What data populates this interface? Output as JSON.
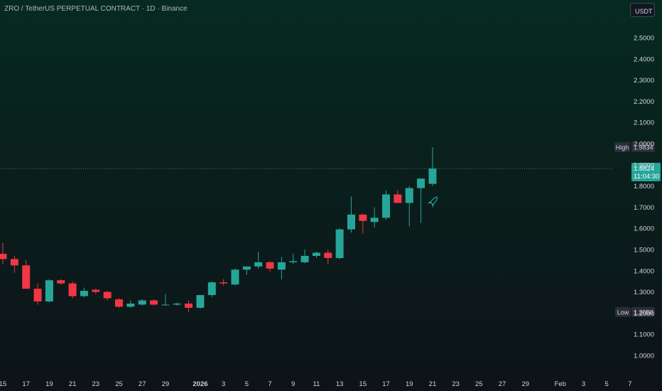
{
  "header": {
    "title": "ZRO / TetherUS PERPETUAL CONTRACT · 1D · Binance",
    "currency_button": "USDT"
  },
  "colors": {
    "up": "#26a69a",
    "down": "#f23645",
    "axis_text": "#d1d4dc",
    "price_line": "#26a69a",
    "label_bg": "#2a2e39"
  },
  "chart_data": {
    "type": "candlestick",
    "ylim": [
      0.95,
      2.6
    ],
    "y_ticks": [
      "2.5000",
      "2.4000",
      "2.3000",
      "2.2000",
      "2.1000",
      "2.0000",
      "1.9000",
      "1.8000",
      "1.7000",
      "1.6000",
      "1.5000",
      "1.4000",
      "1.3000",
      "1.2000",
      "1.1000",
      "1.0000"
    ],
    "y_tick_values": [
      2.5,
      2.4,
      2.3,
      2.2,
      2.1,
      2.0,
      1.9,
      1.8,
      1.7,
      1.6,
      1.5,
      1.4,
      1.3,
      1.2,
      1.1,
      1.0
    ],
    "x_ticks": [
      {
        "label": "15",
        "day": 0,
        "bold": false
      },
      {
        "label": "17",
        "day": 2,
        "bold": false
      },
      {
        "label": "19",
        "day": 4,
        "bold": false
      },
      {
        "label": "21",
        "day": 6,
        "bold": false
      },
      {
        "label": "23",
        "day": 8,
        "bold": false
      },
      {
        "label": "25",
        "day": 10,
        "bold": false
      },
      {
        "label": "27",
        "day": 12,
        "bold": false
      },
      {
        "label": "29",
        "day": 14,
        "bold": false
      },
      {
        "label": "2026",
        "day": 17,
        "bold": true
      },
      {
        "label": "3",
        "day": 19,
        "bold": false
      },
      {
        "label": "5",
        "day": 21,
        "bold": false
      },
      {
        "label": "7",
        "day": 23,
        "bold": false
      },
      {
        "label": "9",
        "day": 25,
        "bold": false
      },
      {
        "label": "11",
        "day": 27,
        "bold": false
      },
      {
        "label": "13",
        "day": 29,
        "bold": false
      },
      {
        "label": "15",
        "day": 31,
        "bold": false
      },
      {
        "label": "17",
        "day": 33,
        "bold": false
      },
      {
        "label": "19",
        "day": 35,
        "bold": false
      },
      {
        "label": "21",
        "day": 37,
        "bold": false
      },
      {
        "label": "23",
        "day": 39,
        "bold": false
      },
      {
        "label": "25",
        "day": 41,
        "bold": false
      },
      {
        "label": "27",
        "day": 43,
        "bold": false
      },
      {
        "label": "29",
        "day": 45,
        "bold": false
      },
      {
        "label": "Feb",
        "day": 48,
        "bold": false
      },
      {
        "label": "3",
        "day": 50,
        "bold": false
      },
      {
        "label": "5",
        "day": 52,
        "bold": false
      },
      {
        "label": "7",
        "day": 54,
        "bold": false
      }
    ],
    "candles": [
      {
        "o": 1.48,
        "h": 1.53,
        "l": 1.43,
        "c": 1.455
      },
      {
        "o": 1.455,
        "h": 1.47,
        "l": 1.39,
        "c": 1.425
      },
      {
        "o": 1.425,
        "h": 1.45,
        "l": 1.32,
        "c": 1.315
      },
      {
        "o": 1.315,
        "h": 1.34,
        "l": 1.24,
        "c": 1.255
      },
      {
        "o": 1.255,
        "h": 1.36,
        "l": 1.25,
        "c": 1.355
      },
      {
        "o": 1.355,
        "h": 1.36,
        "l": 1.335,
        "c": 1.34
      },
      {
        "o": 1.34,
        "h": 1.35,
        "l": 1.27,
        "c": 1.28
      },
      {
        "o": 1.28,
        "h": 1.32,
        "l": 1.275,
        "c": 1.305
      },
      {
        "o": 1.31,
        "h": 1.315,
        "l": 1.29,
        "c": 1.3
      },
      {
        "o": 1.3,
        "h": 1.305,
        "l": 1.26,
        "c": 1.27
      },
      {
        "o": 1.265,
        "h": 1.27,
        "l": 1.225,
        "c": 1.23
      },
      {
        "o": 1.23,
        "h": 1.26,
        "l": 1.225,
        "c": 1.245
      },
      {
        "o": 1.24,
        "h": 1.265,
        "l": 1.235,
        "c": 1.26
      },
      {
        "o": 1.26,
        "h": 1.265,
        "l": 1.235,
        "c": 1.24
      },
      {
        "o": 1.24,
        "h": 1.29,
        "l": 1.235,
        "c": 1.24
      },
      {
        "o": 1.24,
        "h": 1.25,
        "l": 1.235,
        "c": 1.245
      },
      {
        "o": 1.245,
        "h": 1.26,
        "l": 1.205,
        "c": 1.225
      },
      {
        "o": 1.225,
        "h": 1.28,
        "l": 1.22,
        "c": 1.285
      },
      {
        "o": 1.285,
        "h": 1.35,
        "l": 1.275,
        "c": 1.345
      },
      {
        "o": 1.345,
        "h": 1.36,
        "l": 1.33,
        "c": 1.34
      },
      {
        "o": 1.335,
        "h": 1.41,
        "l": 1.33,
        "c": 1.405
      },
      {
        "o": 1.405,
        "h": 1.42,
        "l": 1.38,
        "c": 1.42
      },
      {
        "o": 1.42,
        "h": 1.49,
        "l": 1.41,
        "c": 1.44
      },
      {
        "o": 1.44,
        "h": 1.445,
        "l": 1.395,
        "c": 1.41
      },
      {
        "o": 1.405,
        "h": 1.465,
        "l": 1.36,
        "c": 1.44
      },
      {
        "o": 1.44,
        "h": 1.48,
        "l": 1.43,
        "c": 1.445
      },
      {
        "o": 1.44,
        "h": 1.5,
        "l": 1.435,
        "c": 1.47
      },
      {
        "o": 1.47,
        "h": 1.49,
        "l": 1.46,
        "c": 1.485
      },
      {
        "o": 1.485,
        "h": 1.5,
        "l": 1.43,
        "c": 1.46
      },
      {
        "o": 1.46,
        "h": 1.6,
        "l": 1.455,
        "c": 1.595
      },
      {
        "o": 1.595,
        "h": 1.75,
        "l": 1.58,
        "c": 1.665
      },
      {
        "o": 1.665,
        "h": 1.67,
        "l": 1.575,
        "c": 1.635
      },
      {
        "o": 1.63,
        "h": 1.7,
        "l": 1.605,
        "c": 1.65
      },
      {
        "o": 1.65,
        "h": 1.78,
        "l": 1.64,
        "c": 1.76
      },
      {
        "o": 1.76,
        "h": 1.78,
        "l": 1.72,
        "c": 1.72
      },
      {
        "o": 1.72,
        "h": 1.8,
        "l": 1.61,
        "c": 1.79
      },
      {
        "o": 1.79,
        "h": 1.83,
        "l": 1.625,
        "c": 1.835
      },
      {
        "o": 1.81,
        "h": 1.983,
        "l": 1.8,
        "c": 1.882
      }
    ],
    "current_price": {
      "value": 1.8824,
      "label": "1.8824",
      "countdown": "11:04:30"
    },
    "high": {
      "label": "High",
      "value": 1.9834,
      "value_text": "1.9834"
    },
    "low": {
      "label": "Low",
      "value": 1.205,
      "value_text": "1.2050"
    }
  }
}
